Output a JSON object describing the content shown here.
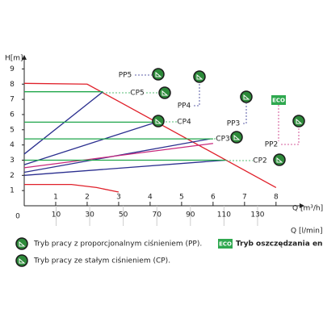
{
  "chart_data": {
    "type": "line",
    "y_label": "H[m]",
    "x_label": "Q [m³/h]",
    "x2_label": "Q [l/min]",
    "origin_label": "0",
    "ylim": [
      0,
      9.5
    ],
    "yticks": [
      1,
      2,
      3,
      4,
      5,
      6,
      7,
      8,
      9
    ],
    "xlim": [
      0,
      8.8
    ],
    "xticks": [
      1,
      2,
      3,
      4,
      5,
      6,
      7,
      8
    ],
    "x2lim": [
      -9,
      156
    ],
    "x2ticks": [
      10,
      30,
      50,
      70,
      90,
      110,
      130
    ],
    "series": [
      {
        "color": "#e0202a",
        "x": [
          0,
          2,
          8
        ],
        "values": [
          8.05,
          8,
          1.2
        ]
      },
      {
        "color": "#e0202a",
        "x": [
          0,
          1.5,
          2.3,
          3
        ],
        "values": [
          1.4,
          1.4,
          1.2,
          0.9
        ]
      },
      {
        "name": "PP5",
        "color": "#2b2f8f",
        "x": [
          0,
          2.5
        ],
        "values": [
          3.4,
          7.5
        ]
      },
      {
        "name": "PP4",
        "color": "#2b2f8f",
        "x": [
          0,
          4.2
        ],
        "values": [
          2.7,
          5.5
        ]
      },
      {
        "name": "PP3",
        "color": "#2b2f8f",
        "x": [
          0,
          5.9
        ],
        "values": [
          2.2,
          4.4
        ]
      },
      {
        "name": "PP2",
        "color": "#c8287c",
        "x": [
          0,
          6.0
        ],
        "values": [
          2.5,
          4.1
        ]
      },
      {
        "color": "#2b2f8f",
        "x": [
          0,
          6.4
        ],
        "values": [
          2.0,
          3.0
        ]
      },
      {
        "name": "CP5",
        "color": "#1fa64a",
        "x": [
          0,
          2.5
        ],
        "values": [
          7.5,
          7.5
        ]
      },
      {
        "name": "CP4",
        "color": "#1fa64a",
        "x": [
          0,
          4.2
        ],
        "values": [
          5.5,
          5.5
        ]
      },
      {
        "name": "CP3",
        "color": "#1fa64a",
        "x": [
          0,
          6.0
        ],
        "values": [
          4.4,
          4.4
        ]
      },
      {
        "name": "CP2",
        "color": "#1fa64a",
        "x": [
          0,
          6.4
        ],
        "values": [
          3,
          3
        ]
      }
    ],
    "legend_items": [
      "Tryb pracy z proporcjonalnym ciśnieniem (PP).",
      "Tryb pracy ze stałym ciśnieniem (CP)."
    ],
    "eco_badge": "ECO",
    "eco_label": "Tryb oszczędzania energii"
  }
}
